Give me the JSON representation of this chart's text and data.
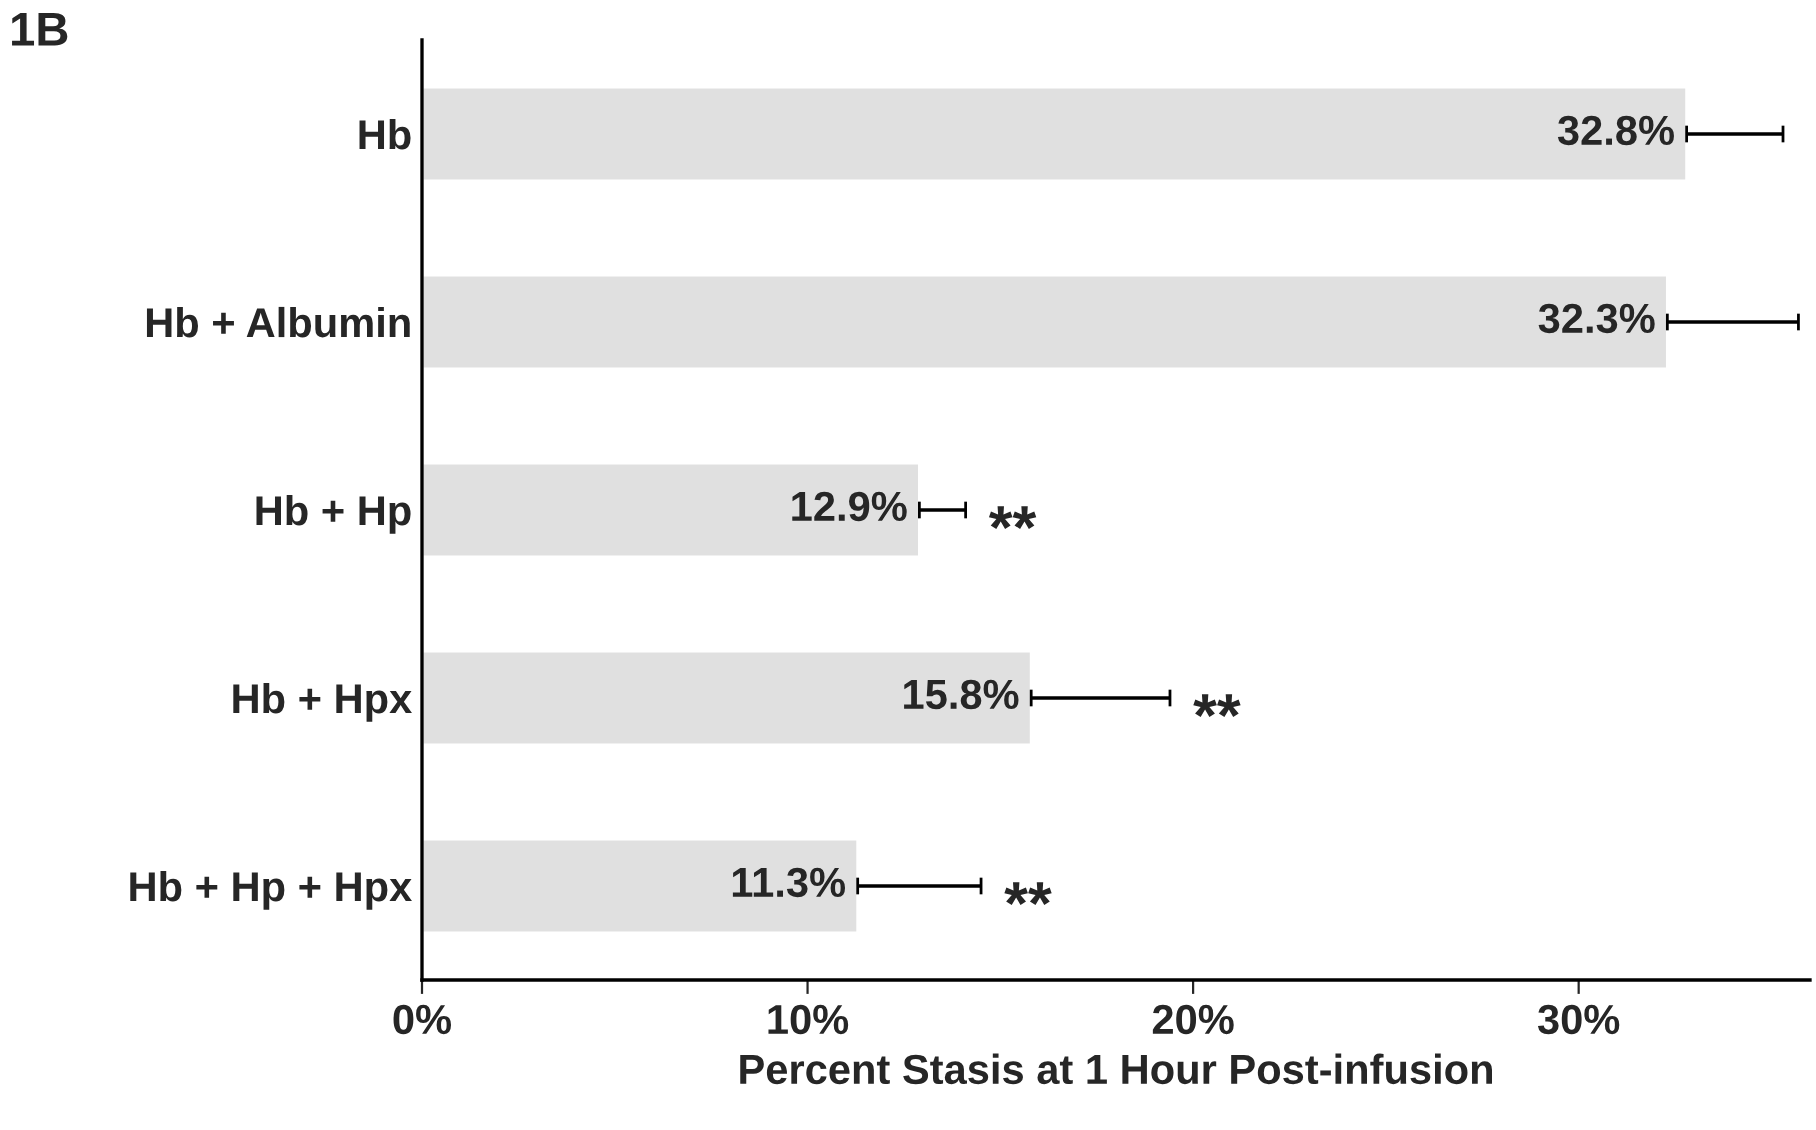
{
  "chart_data": {
    "type": "bar",
    "orientation": "horizontal",
    "categories": [
      "Hb",
      "Hb + Albumin",
      "Hb + Hp",
      "Hb + Hpx",
      "Hb + Hp + Hpx"
    ],
    "values": [
      32.8,
      32.3,
      12.9,
      15.8,
      11.3
    ],
    "value_labels": [
      "32.8%",
      "32.3%",
      "12.9%",
      "15.8%",
      "11.3%"
    ],
    "errors": [
      [
        32.8,
        35.3
      ],
      [
        32.3,
        35.7
      ],
      [
        12.9,
        14.1
      ],
      [
        15.8,
        19.4
      ],
      [
        11.3,
        14.5
      ]
    ],
    "color": "#e0e0e0",
    "xlabel": "Percent Stasis at 1 Hour Post-infusion",
    "xlim": [
      0,
      36
    ],
    "xticks": [
      {
        "value": 0,
        "label": "0%"
      },
      {
        "value": 10,
        "label": "10%"
      },
      {
        "value": 20,
        "label": "20%"
      },
      {
        "value": 30,
        "label": "30%"
      }
    ],
    "grid": false,
    "legend": false,
    "annotations": [
      "1B",
      "**",
      "**",
      "**"
    ]
  }
}
